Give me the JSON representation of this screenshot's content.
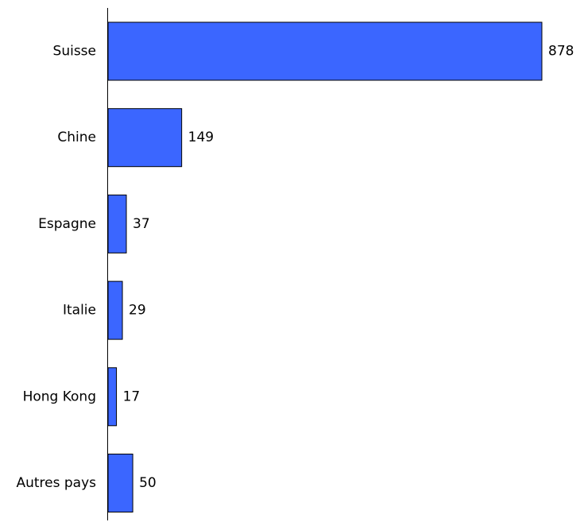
{
  "chart_data": {
    "type": "bar",
    "orientation": "horizontal",
    "categories": [
      "Suisse",
      "Chine",
      "Espagne",
      "Italie",
      "Hong Kong",
      "Autres pays"
    ],
    "values": [
      878,
      149,
      37,
      29,
      17,
      50
    ],
    "data_labels": [
      "878",
      "149",
      "37",
      "29",
      "17",
      "50"
    ],
    "title": "",
    "xlabel": "",
    "ylabel": "",
    "xlim": [
      0,
      878
    ],
    "grid": false,
    "legend": "none",
    "bar_color": "#3b66ff",
    "bar_edge_color": "#000000",
    "axis_color": "#000000"
  }
}
